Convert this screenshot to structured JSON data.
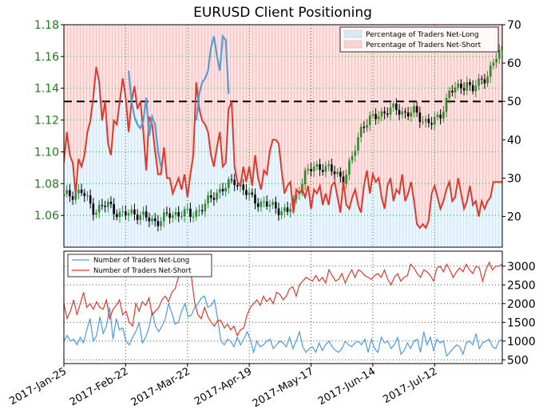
{
  "chart_data": [
    {
      "type": "line",
      "title": "EURUSD Client Positioning",
      "x_dates": [
        "2017-Jan-25",
        "2017-Feb-22",
        "2017-Mar-22",
        "2017-Apr-19",
        "2017-May-17",
        "2017-Jun-14",
        "2017-Jul-12"
      ],
      "ylim_left": [
        1.04,
        1.18
      ],
      "left_ticks": [
        "1.06",
        "1.08",
        "1.10",
        "1.12",
        "1.14",
        "1.16",
        "1.18"
      ],
      "ylim_right": [
        12,
        70
      ],
      "right_ticks": [
        "20",
        "30",
        "40",
        "50",
        "60",
        "70"
      ],
      "reference_line_right": 50,
      "legend": {
        "placement": "top-right",
        "items": [
          "Percentage of Traders Net-Long",
          "Percentage of Traders Net-Short"
        ]
      },
      "colors": {
        "net_long": "#5b9bd5",
        "net_short": "#e0392b",
        "long_fill": "#dbe9f7",
        "short_fill": "#f7d4d4",
        "price_up": "#2e8b2e",
        "price_down": "#000000",
        "left_tick_color": "#1a7d1a",
        "grid_color": "#2a9a2a"
      },
      "price_anchors": [
        [
          0,
          1.072
        ],
        [
          4,
          1.075
        ],
        [
          7,
          1.063
        ],
        [
          10,
          1.067
        ],
        [
          13,
          1.06
        ],
        [
          16,
          1.062
        ],
        [
          19,
          1.058
        ],
        [
          21,
          1.056
        ],
        [
          24,
          1.06
        ],
        [
          27,
          1.062
        ],
        [
          29,
          1.06
        ],
        [
          32,
          1.066
        ],
        [
          35,
          1.075
        ],
        [
          37,
          1.078
        ],
        [
          39,
          1.082
        ],
        [
          41,
          1.076
        ],
        [
          43,
          1.07
        ],
        [
          45,
          1.068
        ],
        [
          47,
          1.066
        ],
        [
          49,
          1.064
        ],
        [
          51,
          1.062
        ],
        [
          52,
          1.066
        ],
        [
          53,
          1.072
        ],
        [
          54,
          1.08
        ],
        [
          55,
          1.086
        ],
        [
          57,
          1.09
        ],
        [
          59,
          1.091
        ],
        [
          61,
          1.088
        ],
        [
          63,
          1.085
        ],
        [
          64,
          1.083
        ],
        [
          65,
          1.09
        ],
        [
          66,
          1.098
        ],
        [
          67,
          1.108
        ],
        [
          68,
          1.117
        ],
        [
          70,
          1.12
        ],
        [
          72,
          1.124
        ],
        [
          74,
          1.126
        ],
        [
          76,
          1.127
        ],
        [
          78,
          1.124
        ],
        [
          80,
          1.125
        ],
        [
          82,
          1.12
        ],
        [
          84,
          1.118
        ],
        [
          85,
          1.12
        ],
        [
          86,
          1.124
        ],
        [
          87,
          1.131
        ],
        [
          88,
          1.138
        ],
        [
          90,
          1.14
        ],
        [
          92,
          1.144
        ],
        [
          93,
          1.137
        ],
        [
          94,
          1.142
        ],
        [
          96,
          1.147
        ],
        [
          97,
          1.15
        ],
        [
          98,
          1.155
        ],
        [
          99,
          1.162
        ],
        [
          100,
          1.165
        ]
      ],
      "net_long_pct": [
        [
          0,
          null
        ],
        [
          21,
          null
        ],
        [
          22,
          58
        ],
        [
          23,
          50
        ],
        [
          24,
          46
        ],
        [
          25,
          44
        ],
        [
          26,
          43
        ],
        [
          27,
          45
        ],
        [
          28,
          51
        ],
        [
          29,
          41
        ],
        [
          30,
          46
        ],
        [
          31,
          44
        ],
        [
          32,
          37
        ],
        [
          33,
          33
        ],
        [
          34,
          null
        ],
        [
          44,
          null
        ],
        [
          45,
          45
        ],
        [
          46,
          52
        ],
        [
          47,
          55
        ],
        [
          48,
          56
        ],
        [
          49,
          58
        ],
        [
          50,
          64
        ],
        [
          51,
          67
        ],
        [
          52,
          62
        ],
        [
          53,
          58
        ],
        [
          54,
          67
        ],
        [
          55,
          66
        ],
        [
          56,
          52
        ],
        [
          57,
          null
        ]
      ],
      "net_short_pct": [
        [
          0,
          34
        ],
        [
          1,
          42
        ],
        [
          2,
          36
        ],
        [
          3,
          34
        ],
        [
          4,
          26
        ],
        [
          5,
          35
        ],
        [
          6,
          33
        ],
        [
          7,
          36
        ],
        [
          8,
          42
        ],
        [
          9,
          45
        ],
        [
          10,
          51
        ],
        [
          11,
          59
        ],
        [
          12,
          55
        ],
        [
          13,
          45
        ],
        [
          14,
          50
        ],
        [
          15,
          39
        ],
        [
          16,
          36
        ],
        [
          17,
          45
        ],
        [
          18,
          44
        ],
        [
          19,
          50
        ],
        [
          20,
          56
        ],
        [
          21,
          51
        ],
        [
          22,
          42
        ],
        [
          23,
          50
        ],
        [
          24,
          54
        ],
        [
          25,
          48
        ],
        [
          26,
          50
        ],
        [
          27,
          42
        ],
        [
          28,
          32
        ],
        [
          29,
          46
        ],
        [
          30,
          44
        ],
        [
          31,
          37
        ],
        [
          32,
          31
        ],
        [
          33,
          31
        ],
        [
          34,
          38
        ],
        [
          35,
          30
        ],
        [
          36,
          30
        ],
        [
          37,
          26
        ],
        [
          38,
          28
        ],
        [
          39,
          30
        ],
        [
          40,
          27
        ],
        [
          41,
          31
        ],
        [
          42,
          25
        ],
        [
          43,
          31
        ],
        [
          44,
          36
        ],
        [
          45,
          55
        ],
        [
          46,
          48
        ],
        [
          47,
          45
        ],
        [
          48,
          44
        ],
        [
          49,
          42
        ],
        [
          50,
          36
        ],
        [
          51,
          33
        ],
        [
          52,
          38
        ],
        [
          53,
          42
        ],
        [
          54,
          33
        ],
        [
          55,
          34
        ],
        [
          56,
          48
        ],
        [
          57,
          50
        ],
        [
          58,
          33
        ],
        [
          59,
          29
        ],
        [
          60,
          28
        ],
        [
          61,
          33
        ],
        [
          62,
          29
        ],
        [
          63,
          33
        ],
        [
          64,
          28
        ],
        [
          65,
          36
        ],
        [
          66,
          30
        ],
        [
          67,
          27
        ],
        [
          68,
          32
        ],
        [
          69,
          31
        ],
        [
          70,
          37
        ],
        [
          71,
          40
        ],
        [
          72,
          40
        ],
        [
          73,
          39
        ],
        [
          74,
          32
        ],
        [
          75,
          26
        ],
        [
          76,
          28
        ],
        [
          77,
          29
        ],
        [
          78,
          21
        ],
        [
          79,
          27
        ],
        [
          80,
          26
        ],
        [
          81,
          27
        ],
        [
          82,
          25
        ],
        [
          83,
          28
        ],
        [
          84,
          22
        ],
        [
          85,
          27
        ],
        [
          86,
          26
        ],
        [
          87,
          28
        ],
        [
          88,
          23
        ],
        [
          89,
          26
        ],
        [
          90,
          23
        ],
        [
          91,
          28
        ],
        [
          92,
          29
        ],
        [
          93,
          25
        ],
        [
          94,
          21
        ],
        [
          95,
          29
        ],
        [
          96,
          23
        ],
        [
          97,
          22
        ],
        [
          98,
          25
        ],
        [
          99,
          27
        ],
        [
          100,
          23
        ]
      ],
      "net_long_pct_tail": [
        [
          72,
          null
        ]
      ],
      "extra_red_segments": [
        [
          [
            100,
            24
          ],
          [
            101,
            21
          ],
          [
            102,
            28
          ],
          [
            103,
            32
          ],
          [
            104,
            26
          ],
          [
            105,
            31
          ],
          [
            106,
            29
          ],
          [
            107,
            30
          ],
          [
            108,
            25
          ],
          [
            109,
            22
          ],
          [
            110,
            28
          ],
          [
            111,
            30
          ],
          [
            112,
            24
          ],
          [
            113,
            27
          ],
          [
            114,
            26
          ],
          [
            115,
            31
          ],
          [
            116,
            24
          ],
          [
            117,
            26
          ],
          [
            118,
            29
          ],
          [
            119,
            24
          ],
          [
            120,
            18
          ],
          [
            121,
            17
          ],
          [
            122,
            18
          ],
          [
            123,
            17
          ],
          [
            124,
            19
          ],
          [
            125,
            26
          ],
          [
            126,
            28
          ],
          [
            127,
            25
          ],
          [
            128,
            22
          ],
          [
            129,
            24
          ],
          [
            130,
            27
          ],
          [
            131,
            29
          ],
          [
            132,
            24
          ],
          [
            133,
            25
          ],
          [
            134,
            30
          ],
          [
            135,
            26
          ],
          [
            136,
            22
          ],
          [
            137,
            24
          ],
          [
            138,
            28
          ],
          [
            139,
            23
          ],
          [
            140,
            24
          ],
          [
            141,
            20
          ],
          [
            142,
            24
          ],
          [
            143,
            22
          ],
          [
            144,
            24
          ],
          [
            145,
            25
          ],
          [
            146,
            29
          ]
        ]
      ]
    },
    {
      "type": "line",
      "ylim": [
        400,
        3400
      ],
      "right_ticks": [
        "500",
        "1000",
        "1500",
        "2000",
        "2500",
        "3000"
      ],
      "legend": {
        "placement": "top-left",
        "items": [
          "Number of Traders Net-Long",
          "Number of Traders Net-Short"
        ]
      },
      "net_long_count": [
        1000,
        1150,
        1000,
        1050,
        900,
        1100,
        950,
        1300,
        1600,
        1000,
        1150,
        1650,
        1200,
        1400,
        1900,
        1050,
        1600,
        1300,
        1350,
        1000,
        900,
        1100,
        1250,
        1500,
        950,
        1100,
        1350,
        1800,
        1400,
        1250,
        1400,
        1600,
        2000,
        1750,
        1450,
        1500,
        1800,
        2000,
        1650,
        1700,
        1900,
        2000,
        2150,
        2200,
        1900,
        1950,
        2100,
        1600,
        1000,
        900,
        1050,
        1000,
        850,
        1100,
        900,
        1050,
        1250,
        1050,
        700,
        1000,
        850,
        900,
        1000,
        1050,
        800,
        900,
        1000,
        950,
        850,
        1100,
        800,
        1000,
        1250,
        850,
        700,
        800,
        850,
        700,
        950,
        750,
        900,
        1000,
        850,
        750,
        700,
        800,
        1000,
        900,
        850,
        950,
        1000,
        900,
        1050,
        700,
        1050,
        800,
        700,
        1100,
        950,
        1000,
        800,
        900,
        1100,
        650,
        750,
        950,
        800,
        1000,
        1050,
        700,
        1250,
        900,
        1100,
        750,
        1050,
        950,
        1000,
        600,
        700,
        800,
        900,
        850,
        650,
        950,
        1000,
        900,
        1200,
        800,
        950,
        1000,
        1050,
        850,
        800,
        1000,
        1050
      ],
      "net_short_count": [
        2000,
        1600,
        1800,
        2100,
        1700,
        2000,
        2300,
        1900,
        2000,
        1850,
        2050,
        1900,
        1850,
        2100,
        1600,
        1850,
        1950,
        2100,
        1700,
        1800,
        1500,
        1400,
        2000,
        1800,
        2050,
        1950,
        2150,
        1700,
        1800,
        1900,
        2100,
        2200,
        2050,
        2300,
        2400,
        2700,
        2950,
        3100,
        2800,
        2700,
        2000,
        1700,
        1600,
        1900,
        1650,
        1500,
        1400,
        1550,
        1550,
        1350,
        1450,
        1300,
        1400,
        1150,
        1300,
        1350,
        1700,
        1900,
        2000,
        2100,
        1950,
        2200,
        2050,
        2150,
        2000,
        2300,
        2250,
        2100,
        2200,
        2400,
        2450,
        2200,
        2500,
        2600,
        2700,
        2650,
        2600,
        2750,
        2600,
        2700,
        2550,
        2900,
        2750,
        2600,
        2650,
        2800,
        2550,
        2750,
        2900,
        2700,
        2900,
        2850,
        2750,
        2700,
        2650,
        2750,
        2800,
        2700,
        2900,
        2650,
        2500,
        2700,
        2800,
        2600,
        2700,
        2750,
        3050,
        2950,
        2800,
        2700,
        2900,
        2850,
        2750,
        2600,
        2950,
        3000,
        2850,
        3050,
        2900,
        2700,
        2850,
        2950,
        2850,
        3050,
        2900,
        2800,
        3000,
        2950,
        2600,
        2900,
        3100,
        2900,
        3000,
        3000,
        3050
      ],
      "tick_labels_x": [
        "2017-Jan-25",
        "2017-Feb-22",
        "2017-Mar-22",
        "2017-Apr-19",
        "2017-May-17",
        "2017-Jun-14",
        "2017-Jul-12"
      ]
    }
  ]
}
